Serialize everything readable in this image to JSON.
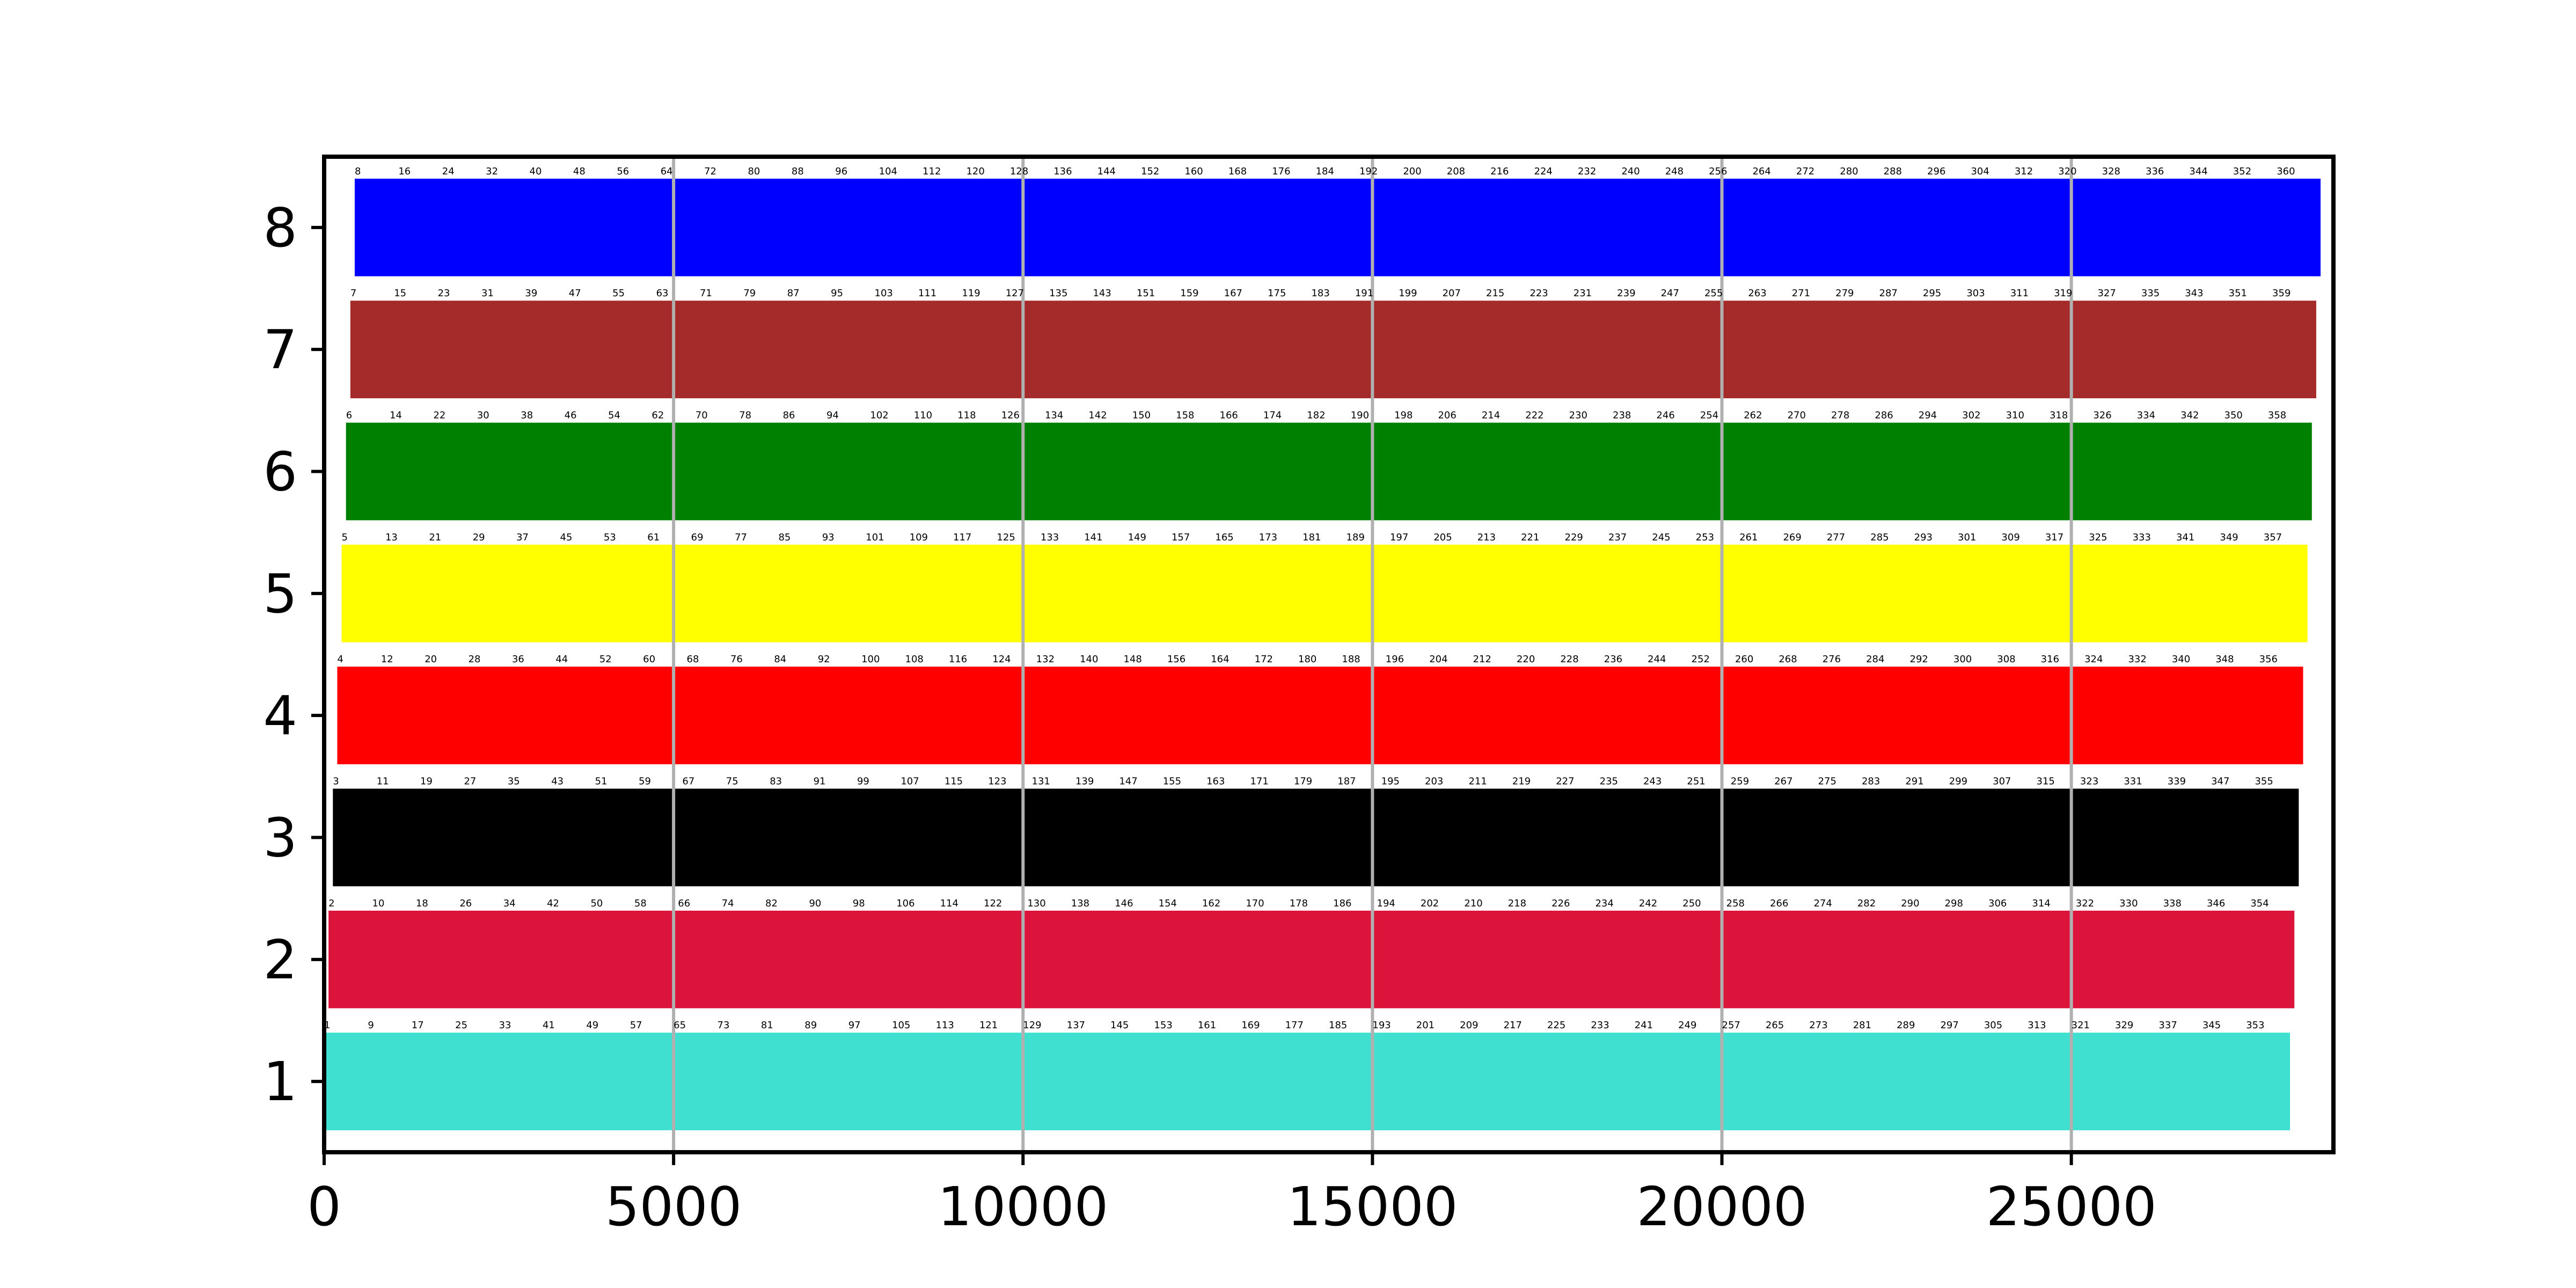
{
  "chart_data": {
    "type": "bar",
    "orientation": "horizontal",
    "stacked": true,
    "title": "",
    "xlabel": "",
    "ylabel": "",
    "xlim": [
      0,
      28750
    ],
    "ylim": [
      0.42,
      8.58
    ],
    "x_ticks": [
      0,
      5000,
      10000,
      15000,
      20000,
      25000
    ],
    "x_tick_labels": [
      "0",
      "5000",
      "10000",
      "15000",
      "20000",
      "25000"
    ],
    "y_ticks": [
      1,
      2,
      3,
      4,
      5,
      6,
      7,
      8
    ],
    "y_tick_labels": [
      "1",
      "2",
      "3",
      "4",
      "5",
      "6",
      "7",
      "8"
    ],
    "grid": {
      "x": true,
      "y": false,
      "color": "#b0b0b0"
    },
    "segment_width": 62.5,
    "segment_count_per_row": 45,
    "label_step": 8,
    "label_every_n_segments": 4,
    "rows": [
      {
        "y": 1,
        "color": "#40e0d0",
        "x_offset": 0
      },
      {
        "y": 2,
        "color": "#dc143c",
        "x_offset": 62.5
      },
      {
        "y": 3,
        "color": "#000000",
        "x_offset": 125
      },
      {
        "y": 4,
        "color": "#ff0000",
        "x_offset": 187.5
      },
      {
        "y": 5,
        "color": "#ffff00",
        "x_offset": 250
      },
      {
        "y": 6,
        "color": "#008000",
        "x_offset": 312.5
      },
      {
        "y": 7,
        "color": "#a52a2a",
        "x_offset": 375
      },
      {
        "y": 8,
        "color": "#0000ff",
        "x_offset": 437.5
      }
    ]
  }
}
